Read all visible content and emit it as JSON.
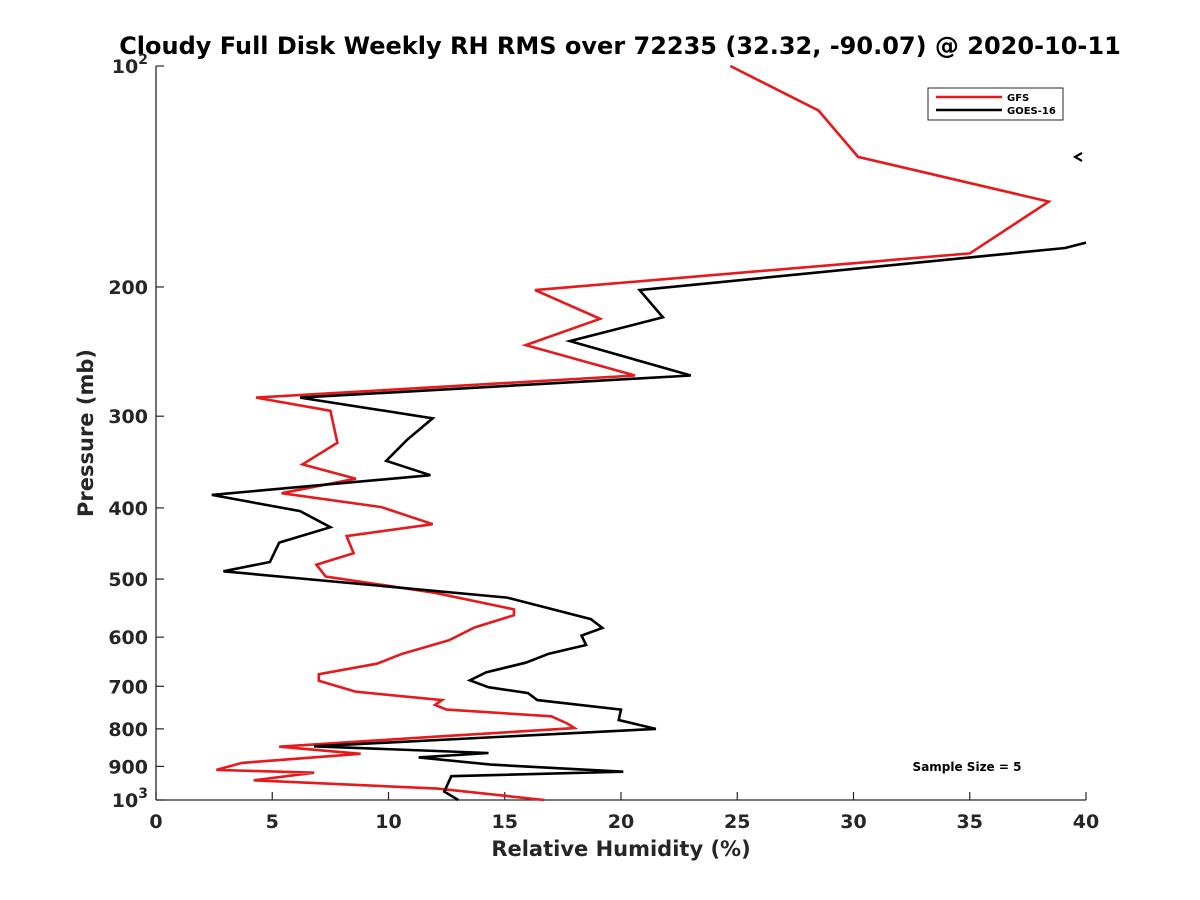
{
  "chart_data": {
    "type": "line",
    "title": "Cloudy Full Disk Weekly RH RMS over 72235 (32.32, -90.07) @ 2020-10-11",
    "xlabel": "Relative Humidity (%)",
    "ylabel": "Pressure (mb)",
    "xlim": [
      0,
      40
    ],
    "ylim": [
      100,
      1000
    ],
    "yscale": "log",
    "yreversed": true,
    "xticks": [
      0,
      5,
      10,
      15,
      20,
      25,
      30,
      35,
      40
    ],
    "yticks": [
      {
        "value": 100,
        "label": "10",
        "sup": "2"
      },
      {
        "value": 200,
        "label": "200"
      },
      {
        "value": 300,
        "label": "300"
      },
      {
        "value": 400,
        "label": "400"
      },
      {
        "value": 500,
        "label": "500"
      },
      {
        "value": 600,
        "label": "600"
      },
      {
        "value": 700,
        "label": "700"
      },
      {
        "value": 800,
        "label": "800"
      },
      {
        "value": 900,
        "label": "900"
      },
      {
        "value": 1000,
        "label": "10",
        "sup": "3"
      }
    ],
    "legend": {
      "position": "top-right"
    },
    "annotation": "Sample Size = 5",
    "series": [
      {
        "name": "GFS",
        "color": "#e41a1c",
        "points": [
          [
            24.7,
            100
          ],
          [
            28.5,
            115
          ],
          [
            30.2,
            133
          ],
          [
            38.4,
            153
          ],
          [
            35.0,
            180
          ],
          [
            16.3,
            202
          ],
          [
            19.1,
            221
          ],
          [
            15.9,
            240
          ],
          [
            20.6,
            264
          ],
          [
            4.3,
            283
          ],
          [
            7.5,
            295
          ],
          [
            7.8,
            326
          ],
          [
            6.3,
            349
          ],
          [
            8.6,
            365
          ],
          [
            5.4,
            382
          ],
          [
            9.7,
            399
          ],
          [
            11.9,
            421
          ],
          [
            8.2,
            437
          ],
          [
            8.5,
            461
          ],
          [
            6.9,
            478
          ],
          [
            7.3,
            496
          ],
          [
            12.0,
            522
          ],
          [
            15.4,
            550
          ],
          [
            15.4,
            560
          ],
          [
            13.7,
            582
          ],
          [
            12.6,
            606
          ],
          [
            10.6,
            632
          ],
          [
            9.5,
            652
          ],
          [
            7.0,
            674
          ],
          [
            7.0,
            688
          ],
          [
            8.6,
            712
          ],
          [
            12.3,
            731
          ],
          [
            12.0,
            742
          ],
          [
            12.5,
            753
          ],
          [
            17.0,
            769
          ],
          [
            17.7,
            787
          ],
          [
            18.0,
            798
          ],
          [
            12.0,
            820
          ],
          [
            5.3,
            846
          ],
          [
            8.8,
            865
          ],
          [
            3.7,
            890
          ],
          [
            2.6,
            910
          ],
          [
            6.8,
            918
          ],
          [
            4.2,
            940
          ],
          [
            12.1,
            965
          ],
          [
            16.7,
            1000
          ]
        ]
      },
      {
        "name": "GOES-16",
        "color": "#000000",
        "points": [
          [
            40.0,
            174
          ],
          [
            39.1,
            177
          ],
          [
            20.8,
            202
          ],
          [
            21.8,
            220
          ],
          [
            17.8,
            237
          ],
          [
            23.0,
            264
          ],
          [
            6.2,
            283
          ],
          [
            11.9,
            302
          ],
          [
            10.8,
            323
          ],
          [
            9.9,
            345
          ],
          [
            11.8,
            361
          ],
          [
            2.4,
            384
          ],
          [
            6.2,
            404
          ],
          [
            7.5,
            425
          ],
          [
            5.3,
            446
          ],
          [
            4.9,
            474
          ],
          [
            2.9,
            488
          ],
          [
            15.1,
            530
          ],
          [
            18.7,
            567
          ],
          [
            19.2,
            583
          ],
          [
            18.3,
            597
          ],
          [
            18.5,
            615
          ],
          [
            16.9,
            632
          ],
          [
            15.9,
            650
          ],
          [
            14.2,
            670
          ],
          [
            13.5,
            687
          ],
          [
            14.3,
            702
          ],
          [
            16.0,
            715
          ],
          [
            16.4,
            731
          ],
          [
            20.0,
            753
          ],
          [
            19.9,
            778
          ],
          [
            21.5,
            800
          ],
          [
            6.8,
            845
          ],
          [
            14.3,
            863
          ],
          [
            11.3,
            875
          ],
          [
            14.4,
            895
          ],
          [
            20.1,
            915
          ],
          [
            12.7,
            928
          ],
          [
            12.4,
            974
          ],
          [
            13.0,
            1000
          ]
        ]
      }
    ]
  }
}
